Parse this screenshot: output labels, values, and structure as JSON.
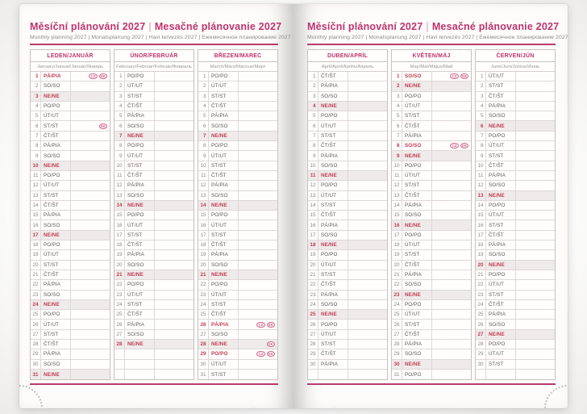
{
  "spread": {
    "title_cz": "Měsíční plánování 2027",
    "title_separator": "|",
    "title_sk": "Mesačné plánovanie 2027",
    "subtitle": "Monthly planning 2027 | Monatsplanung 2027 | Havi tervezés 2027 | Ежемесячное планирование 2027"
  },
  "colors": {
    "accent_magenta": "#bf336f",
    "rule_magenta": "#b93b6d",
    "holiday_red": "#c23a52",
    "sunday_row_bg": "#efebea",
    "flag_pink": "#cd6088"
  },
  "holiday_flag_labels": [
    "CZ",
    "SK"
  ],
  "pages": [
    {
      "side": "left",
      "months": [
        {
          "name": "LEDEN/JANUÁR",
          "langs": "January/Januar/Január/Январь",
          "days": [
            {
              "n": 1,
              "d": "PÁ/PIA",
              "t": "hol",
              "f": [
                "CZ",
                "SK"
              ]
            },
            {
              "n": 2,
              "d": "SO/SO"
            },
            {
              "n": 3,
              "d": "NE/NE",
              "t": "sun"
            },
            {
              "n": 4,
              "d": "PO/PO"
            },
            {
              "n": 5,
              "d": "ÚT/UT"
            },
            {
              "n": 6,
              "d": "ST/ST",
              "f": [
                "SK"
              ]
            },
            {
              "n": 7,
              "d": "ČT/ŠT"
            },
            {
              "n": 8,
              "d": "PÁ/PIA"
            },
            {
              "n": 9,
              "d": "SO/SO"
            },
            {
              "n": 10,
              "d": "NE/NE",
              "t": "sun"
            },
            {
              "n": 11,
              "d": "PO/PO"
            },
            {
              "n": 12,
              "d": "ÚT/UT"
            },
            {
              "n": 13,
              "d": "ST/ST"
            },
            {
              "n": 14,
              "d": "ČT/ŠT"
            },
            {
              "n": 15,
              "d": "PÁ/PIA"
            },
            {
              "n": 16,
              "d": "SO/SO"
            },
            {
              "n": 17,
              "d": "NE/NE",
              "t": "sun"
            },
            {
              "n": 18,
              "d": "PO/PO"
            },
            {
              "n": 19,
              "d": "ÚT/UT"
            },
            {
              "n": 20,
              "d": "ST/ST"
            },
            {
              "n": 21,
              "d": "ČT/ŠT"
            },
            {
              "n": 22,
              "d": "PÁ/PIA"
            },
            {
              "n": 23,
              "d": "SO/SO"
            },
            {
              "n": 24,
              "d": "NE/NE",
              "t": "sun"
            },
            {
              "n": 25,
              "d": "PO/PO"
            },
            {
              "n": 26,
              "d": "ÚT/UT"
            },
            {
              "n": 27,
              "d": "ST/ST"
            },
            {
              "n": 28,
              "d": "ČT/ŠT"
            },
            {
              "n": 29,
              "d": "PÁ/PIA"
            },
            {
              "n": 30,
              "d": "SO/SO"
            },
            {
              "n": 31,
              "d": "NE/NE",
              "t": "sun"
            }
          ]
        },
        {
          "name": "ÚNOR/FEBRUÁR",
          "langs": "February/Februar/Február/Февраль",
          "days": [
            {
              "n": 1,
              "d": "PO/PO"
            },
            {
              "n": 2,
              "d": "ÚT/UT"
            },
            {
              "n": 3,
              "d": "ST/ST"
            },
            {
              "n": 4,
              "d": "ČT/ŠT"
            },
            {
              "n": 5,
              "d": "PÁ/PIA"
            },
            {
              "n": 6,
              "d": "SO/SO"
            },
            {
              "n": 7,
              "d": "NE/NE",
              "t": "sun"
            },
            {
              "n": 8,
              "d": "PO/PO"
            },
            {
              "n": 9,
              "d": "ÚT/UT"
            },
            {
              "n": 10,
              "d": "ST/ST"
            },
            {
              "n": 11,
              "d": "ČT/ŠT"
            },
            {
              "n": 12,
              "d": "PÁ/PIA"
            },
            {
              "n": 13,
              "d": "SO/SO"
            },
            {
              "n": 14,
              "d": "NE/NE",
              "t": "sun"
            },
            {
              "n": 15,
              "d": "PO/PO"
            },
            {
              "n": 16,
              "d": "ÚT/UT"
            },
            {
              "n": 17,
              "d": "ST/ST"
            },
            {
              "n": 18,
              "d": "ČT/ŠT"
            },
            {
              "n": 19,
              "d": "PÁ/PIA"
            },
            {
              "n": 20,
              "d": "SO/SO"
            },
            {
              "n": 21,
              "d": "NE/NE",
              "t": "sun"
            },
            {
              "n": 22,
              "d": "PO/PO"
            },
            {
              "n": 23,
              "d": "ÚT/UT"
            },
            {
              "n": 24,
              "d": "ST/ST"
            },
            {
              "n": 25,
              "d": "ČT/ŠT"
            },
            {
              "n": 26,
              "d": "PÁ/PIA"
            },
            {
              "n": 27,
              "d": "SO/SO"
            },
            {
              "n": 28,
              "d": "NE/NE",
              "t": "sun"
            }
          ]
        },
        {
          "name": "BŘEZEN/MAREC",
          "langs": "March/März/Március/Март",
          "days": [
            {
              "n": 1,
              "d": "PO/PO"
            },
            {
              "n": 2,
              "d": "ÚT/UT"
            },
            {
              "n": 3,
              "d": "ST/ST"
            },
            {
              "n": 4,
              "d": "ČT/ŠT"
            },
            {
              "n": 5,
              "d": "PÁ/PIA"
            },
            {
              "n": 6,
              "d": "SO/SO"
            },
            {
              "n": 7,
              "d": "NE/NE",
              "t": "sun"
            },
            {
              "n": 8,
              "d": "PO/PO"
            },
            {
              "n": 9,
              "d": "ÚT/UT"
            },
            {
              "n": 10,
              "d": "ST/ST"
            },
            {
              "n": 11,
              "d": "ČT/ŠT"
            },
            {
              "n": 12,
              "d": "PÁ/PIA"
            },
            {
              "n": 13,
              "d": "SO/SO"
            },
            {
              "n": 14,
              "d": "NE/NE",
              "t": "sun"
            },
            {
              "n": 15,
              "d": "PO/PO"
            },
            {
              "n": 16,
              "d": "ÚT/UT"
            },
            {
              "n": 17,
              "d": "ST/ST"
            },
            {
              "n": 18,
              "d": "ČT/ŠT"
            },
            {
              "n": 19,
              "d": "PÁ/PIA"
            },
            {
              "n": 20,
              "d": "SO/SO"
            },
            {
              "n": 21,
              "d": "NE/NE",
              "t": "sun"
            },
            {
              "n": 22,
              "d": "PO/PO"
            },
            {
              "n": 23,
              "d": "ÚT/UT"
            },
            {
              "n": 24,
              "d": "ST/ST"
            },
            {
              "n": 25,
              "d": "ČT/ŠT"
            },
            {
              "n": 26,
              "d": "PÁ/PIA",
              "t": "hol",
              "f": [
                "CZ",
                "SK"
              ]
            },
            {
              "n": 27,
              "d": "SO/SO"
            },
            {
              "n": 28,
              "d": "NE/NE",
              "t": "sun",
              "f": [
                "SK"
              ]
            },
            {
              "n": 29,
              "d": "PO/PO",
              "t": "hol",
              "f": [
                "CZ",
                "SK"
              ]
            },
            {
              "n": 30,
              "d": "ÚT/UT"
            },
            {
              "n": 31,
              "d": "ST/ST"
            }
          ]
        }
      ]
    },
    {
      "side": "right",
      "months": [
        {
          "name": "DUBEN/APRÍL",
          "langs": "April/April/Április/Апрель",
          "days": [
            {
              "n": 1,
              "d": "ČT/ŠT"
            },
            {
              "n": 2,
              "d": "PÁ/PIA"
            },
            {
              "n": 3,
              "d": "SO/SO"
            },
            {
              "n": 4,
              "d": "NE/NE",
              "t": "sun"
            },
            {
              "n": 5,
              "d": "PO/PO"
            },
            {
              "n": 6,
              "d": "ÚT/UT"
            },
            {
              "n": 7,
              "d": "ST/ST"
            },
            {
              "n": 8,
              "d": "ČT/ŠT"
            },
            {
              "n": 9,
              "d": "PÁ/PIA"
            },
            {
              "n": 10,
              "d": "SO/SO"
            },
            {
              "n": 11,
              "d": "NE/NE",
              "t": "sun"
            },
            {
              "n": 12,
              "d": "PO/PO"
            },
            {
              "n": 13,
              "d": "ÚT/UT"
            },
            {
              "n": 14,
              "d": "ST/ST"
            },
            {
              "n": 15,
              "d": "ČT/ŠT"
            },
            {
              "n": 16,
              "d": "PÁ/PIA"
            },
            {
              "n": 17,
              "d": "SO/SO"
            },
            {
              "n": 18,
              "d": "NE/NE",
              "t": "sun"
            },
            {
              "n": 19,
              "d": "PO/PO"
            },
            {
              "n": 20,
              "d": "ÚT/UT"
            },
            {
              "n": 21,
              "d": "ST/ST"
            },
            {
              "n": 22,
              "d": "ČT/ŠT"
            },
            {
              "n": 23,
              "d": "PÁ/PIA"
            },
            {
              "n": 24,
              "d": "SO/SO"
            },
            {
              "n": 25,
              "d": "NE/NE",
              "t": "sun"
            },
            {
              "n": 26,
              "d": "PO/PO"
            },
            {
              "n": 27,
              "d": "ÚT/UT"
            },
            {
              "n": 28,
              "d": "ST/ST"
            },
            {
              "n": 29,
              "d": "ČT/ŠT"
            },
            {
              "n": 30,
              "d": "PÁ/PIA"
            }
          ]
        },
        {
          "name": "KVĚTEN/MÁJ",
          "langs": "May/Mai/Május/Май",
          "days": [
            {
              "n": 1,
              "d": "SO/SO",
              "t": "hol",
              "f": [
                "CZ",
                "SK"
              ]
            },
            {
              "n": 2,
              "d": "NE/NE",
              "t": "sun"
            },
            {
              "n": 3,
              "d": "PO/PO"
            },
            {
              "n": 4,
              "d": "ÚT/UT"
            },
            {
              "n": 5,
              "d": "ST/ST"
            },
            {
              "n": 6,
              "d": "ČT/ŠT"
            },
            {
              "n": 7,
              "d": "PÁ/PIA"
            },
            {
              "n": 8,
              "d": "SO/SO",
              "t": "hol",
              "f": [
                "CZ",
                "SK"
              ]
            },
            {
              "n": 9,
              "d": "NE/NE",
              "t": "sun"
            },
            {
              "n": 10,
              "d": "PO/PO"
            },
            {
              "n": 11,
              "d": "ÚT/UT"
            },
            {
              "n": 12,
              "d": "ST/ST"
            },
            {
              "n": 13,
              "d": "ČT/ŠT"
            },
            {
              "n": 14,
              "d": "PÁ/PIA"
            },
            {
              "n": 15,
              "d": "SO/SO"
            },
            {
              "n": 16,
              "d": "NE/NE",
              "t": "sun"
            },
            {
              "n": 17,
              "d": "PO/PO"
            },
            {
              "n": 18,
              "d": "ÚT/UT"
            },
            {
              "n": 19,
              "d": "ST/ST"
            },
            {
              "n": 20,
              "d": "ČT/ŠT"
            },
            {
              "n": 21,
              "d": "PÁ/PIA"
            },
            {
              "n": 22,
              "d": "SO/SO"
            },
            {
              "n": 23,
              "d": "NE/NE",
              "t": "sun"
            },
            {
              "n": 24,
              "d": "PO/PO"
            },
            {
              "n": 25,
              "d": "ÚT/UT"
            },
            {
              "n": 26,
              "d": "ST/ST"
            },
            {
              "n": 27,
              "d": "ČT/ŠT"
            },
            {
              "n": 28,
              "d": "PÁ/PIA"
            },
            {
              "n": 29,
              "d": "SO/SO"
            },
            {
              "n": 30,
              "d": "NE/NE",
              "t": "sun"
            },
            {
              "n": 31,
              "d": "PO/PO"
            }
          ]
        },
        {
          "name": "ČERVEN/JÚN",
          "langs": "June/Juni/Június/Июнь",
          "days": [
            {
              "n": 1,
              "d": "ÚT/UT"
            },
            {
              "n": 2,
              "d": "ST/ST"
            },
            {
              "n": 3,
              "d": "ČT/ŠT"
            },
            {
              "n": 4,
              "d": "PÁ/PIA"
            },
            {
              "n": 5,
              "d": "SO/SO"
            },
            {
              "n": 6,
              "d": "NE/NE",
              "t": "sun"
            },
            {
              "n": 7,
              "d": "PO/PO"
            },
            {
              "n": 8,
              "d": "ÚT/UT"
            },
            {
              "n": 9,
              "d": "ST/ST"
            },
            {
              "n": 10,
              "d": "ČT/ŠT"
            },
            {
              "n": 11,
              "d": "PÁ/PIA"
            },
            {
              "n": 12,
              "d": "SO/SO"
            },
            {
              "n": 13,
              "d": "NE/NE",
              "t": "sun"
            },
            {
              "n": 14,
              "d": "PO/PO"
            },
            {
              "n": 15,
              "d": "ÚT/UT"
            },
            {
              "n": 16,
              "d": "ST/ST"
            },
            {
              "n": 17,
              "d": "ČT/ŠT"
            },
            {
              "n": 18,
              "d": "PÁ/PIA"
            },
            {
              "n": 19,
              "d": "SO/SO"
            },
            {
              "n": 20,
              "d": "NE/NE",
              "t": "sun"
            },
            {
              "n": 21,
              "d": "PO/PO"
            },
            {
              "n": 22,
              "d": "ÚT/UT"
            },
            {
              "n": 23,
              "d": "ST/ST"
            },
            {
              "n": 24,
              "d": "ČT/ŠT"
            },
            {
              "n": 25,
              "d": "PÁ/PIA"
            },
            {
              "n": 26,
              "d": "SO/SO"
            },
            {
              "n": 27,
              "d": "NE/NE",
              "t": "sun"
            },
            {
              "n": 28,
              "d": "PO/PO"
            },
            {
              "n": 29,
              "d": "ÚT/UT"
            },
            {
              "n": 30,
              "d": "ST/ST"
            }
          ]
        }
      ]
    }
  ]
}
